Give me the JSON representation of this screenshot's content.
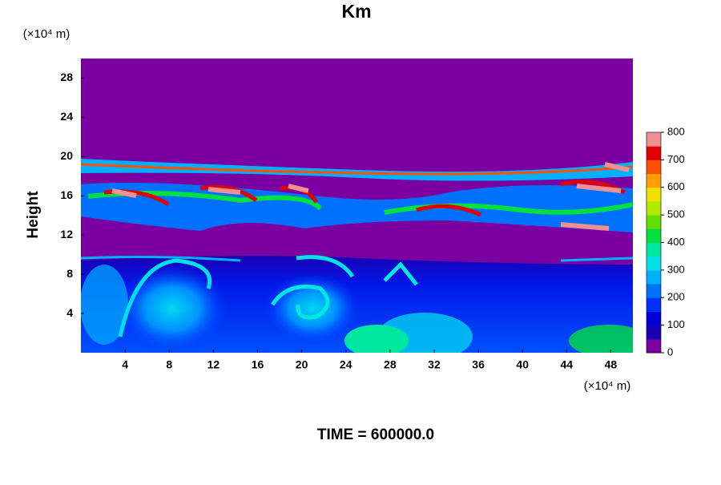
{
  "chart_data": {
    "type": "contour",
    "title": "Km",
    "y_unit_label": "(×10⁴ m)",
    "x_unit_label": "(×10⁴ m)",
    "ylabel": "Height",
    "footer": "TIME = 600000.0",
    "xlim": [
      0,
      50
    ],
    "xticks": [
      4,
      8,
      12,
      16,
      20,
      24,
      28,
      32,
      36,
      40,
      44,
      48
    ],
    "ylim": [
      0,
      30
    ],
    "yticks": [
      4,
      8,
      12,
      16,
      20,
      24,
      28
    ],
    "colorbar": {
      "lim": [
        0,
        800
      ],
      "ticks": [
        0,
        100,
        200,
        300,
        400,
        500,
        600,
        700,
        800
      ],
      "colors": [
        "#7a00a2",
        "#1a00b4",
        "#0000d8",
        "#0030ff",
        "#0070ff",
        "#00b0ff",
        "#00e0e8",
        "#00e8a0",
        "#00e040",
        "#60e000",
        "#b0e800",
        "#f0e000",
        "#ffa000",
        "#ff5000",
        "#e00000",
        "#f09090"
      ]
    }
  }
}
